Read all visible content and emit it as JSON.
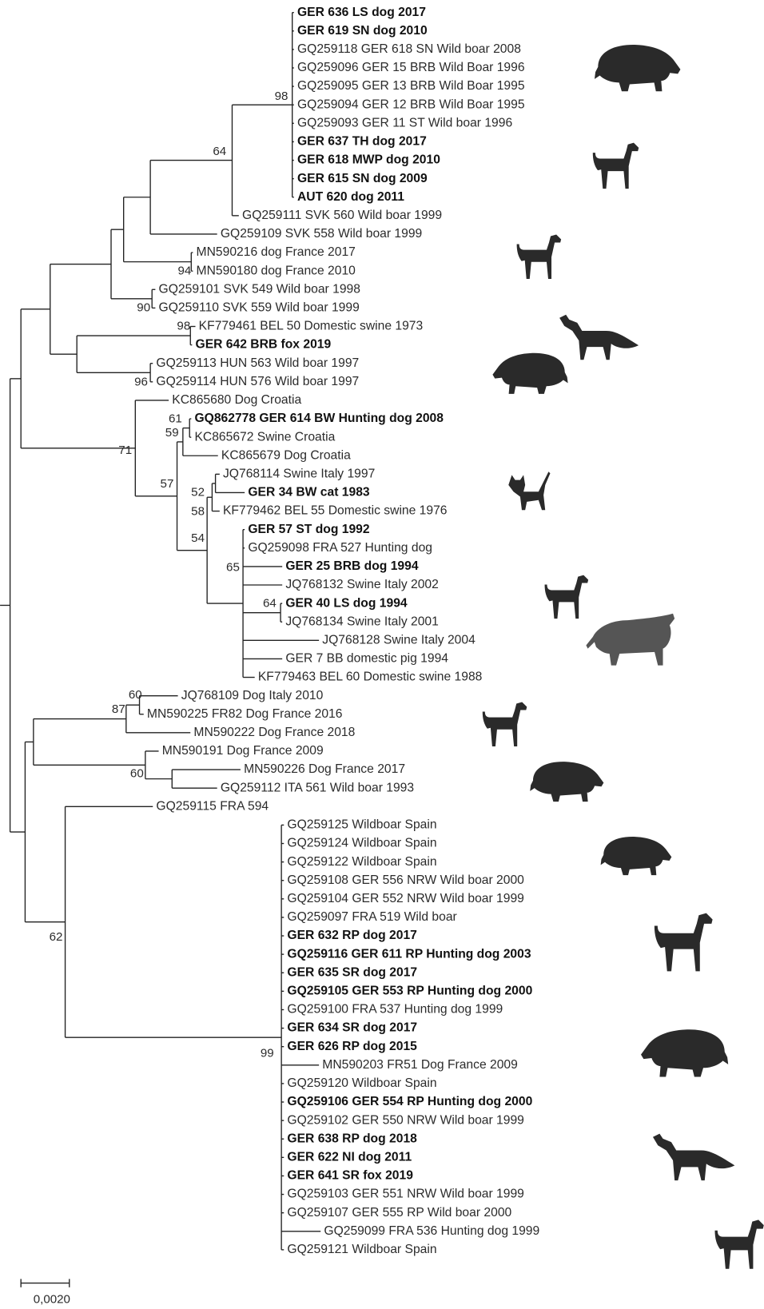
{
  "leaves": [
    {
      "label": "GER 636 LS dog 2017",
      "bold": true
    },
    {
      "label": "GER 619 SN dog 2010",
      "bold": true
    },
    {
      "label": "GQ259118 GER 618 SN Wild boar 2008",
      "bold": false
    },
    {
      "label": "GQ259096 GER 15 BRB Wild Boar 1996",
      "bold": false
    },
    {
      "label": "GQ259095 GER 13 BRB Wild Boar 1995",
      "bold": false
    },
    {
      "label": "GQ259094 GER 12 BRB Wild Boar 1995",
      "bold": false
    },
    {
      "label": "GQ259093 GER 11 ST Wild boar 1996",
      "bold": false
    },
    {
      "label": "GER 637 TH dog 2017",
      "bold": true
    },
    {
      "label": "GER 618 MWP dog 2010",
      "bold": true
    },
    {
      "label": "GER 615 SN dog 2009",
      "bold": true
    },
    {
      "label": "AUT 620 dog 2011",
      "bold": true
    },
    {
      "label": "GQ259111 SVK 560 Wild boar 1999",
      "bold": false
    },
    {
      "label": "GQ259109 SVK 558 Wild boar 1999",
      "bold": false
    },
    {
      "label": "MN590216 dog France 2017",
      "bold": false
    },
    {
      "label": "MN590180 dog France 2010",
      "bold": false
    },
    {
      "label": "GQ259101 SVK 549 Wild boar 1998",
      "bold": false
    },
    {
      "label": "GQ259110 SVK 559 Wild boar 1999",
      "bold": false
    },
    {
      "label": "KF779461 BEL 50 Domestic swine 1973",
      "bold": false
    },
    {
      "label": "GER 642 BRB fox 2019",
      "bold": true
    },
    {
      "label": "GQ259113 HUN 563 Wild boar 1997",
      "bold": false
    },
    {
      "label": "GQ259114 HUN 576 Wild boar 1997",
      "bold": false
    },
    {
      "label": "KC865680 Dog Croatia",
      "bold": false
    },
    {
      "label": "GQ862778 GER 614 BW Hunting dog 2008",
      "bold": true
    },
    {
      "label": "KC865672 Swine Croatia",
      "bold": false
    },
    {
      "label": "KC865679 Dog Croatia",
      "bold": false
    },
    {
      "label": "JQ768114 Swine Italy 1997",
      "bold": false
    },
    {
      "label": "GER 34 BW cat 1983",
      "bold": true
    },
    {
      "label": "KF779462 BEL 55 Domestic swine 1976",
      "bold": false
    },
    {
      "label": "GER 57 ST dog 1992",
      "bold": true
    },
    {
      "label": "GQ259098 FRA 527 Hunting dog",
      "bold": false
    },
    {
      "label": "GER 25 BRB dog 1994",
      "bold": true
    },
    {
      "label": "JQ768132 Swine Italy 2002",
      "bold": false
    },
    {
      "label": "GER 40 LS dog 1994",
      "bold": true
    },
    {
      "label": "JQ768134 Swine Italy 2001",
      "bold": false
    },
    {
      "label": "JQ768128 Swine Italy 2004",
      "bold": false
    },
    {
      "label": "GER 7 BB domestic pig 1994",
      "bold": false
    },
    {
      "label": "KF779463 BEL 60 Domestic swine 1988",
      "bold": false
    },
    {
      "label": "JQ768109 Dog Italy 2010",
      "bold": false
    },
    {
      "label": "MN590225 FR82 Dog France 2016",
      "bold": false
    },
    {
      "label": "MN590222 Dog France 2018",
      "bold": false
    },
    {
      "label": "MN590191 Dog France 2009",
      "bold": false
    },
    {
      "label": "MN590226 Dog France 2017",
      "bold": false
    },
    {
      "label": "GQ259112 ITA 561 Wild boar 1993",
      "bold": false
    },
    {
      "label": "GQ259115 FRA 594",
      "bold": false
    },
    {
      "label": "GQ259125 Wildboar Spain",
      "bold": false
    },
    {
      "label": "GQ259124 Wildboar Spain",
      "bold": false
    },
    {
      "label": "GQ259122 Wildboar Spain",
      "bold": false
    },
    {
      "label": "GQ259108 GER 556 NRW Wild boar 2000",
      "bold": false
    },
    {
      "label": "GQ259104 GER 552 NRW Wild boar 1999",
      "bold": false
    },
    {
      "label": "GQ259097 FRA 519 Wild boar",
      "bold": false
    },
    {
      "label": "GER 632 RP dog 2017",
      "bold": true
    },
    {
      "label": "GQ259116 GER 611 RP Hunting dog 2003",
      "bold": true
    },
    {
      "label": "GER 635 SR dog 2017",
      "bold": true
    },
    {
      "label": "GQ259105 GER 553 RP Hunting dog 2000",
      "bold": true
    },
    {
      "label": "GQ259100 FRA 537 Hunting dog 1999",
      "bold": false
    },
    {
      "label": "GER 634 SR dog 2017",
      "bold": true
    },
    {
      "label": "GER 626 RP dog 2015",
      "bold": true
    },
    {
      "label": "MN590203 FR51 Dog France 2009",
      "bold": false
    },
    {
      "label": "GQ259120 Wildboar Spain",
      "bold": false
    },
    {
      "label": "GQ259106 GER 554 RP Hunting dog 2000",
      "bold": true
    },
    {
      "label": "GQ259102 GER 550 NRW Wild boar 1999",
      "bold": false
    },
    {
      "label": "GER 638 RP dog 2018",
      "bold": true
    },
    {
      "label": "GER 622 NI dog 2011",
      "bold": true
    },
    {
      "label": "GER 641 SR fox 2019",
      "bold": true
    },
    {
      "label": "GQ259103 GER 551 NRW Wild boar 1999",
      "bold": false
    },
    {
      "label": "GQ259107 GER 555 RP Wild boar 2000",
      "bold": false
    },
    {
      "label": "GQ259099 FRA 536 Hunting dog 1999",
      "bold": false
    },
    {
      "label": "GQ259121 Wildboar Spain",
      "bold": false
    }
  ],
  "support_values": [
    98,
    64,
    94,
    90,
    98,
    96,
    61,
    59,
    71,
    57,
    52,
    58,
    54,
    65,
    64,
    60,
    87,
    60,
    62,
    99
  ],
  "scale_bar": {
    "label": "0,0020"
  }
}
